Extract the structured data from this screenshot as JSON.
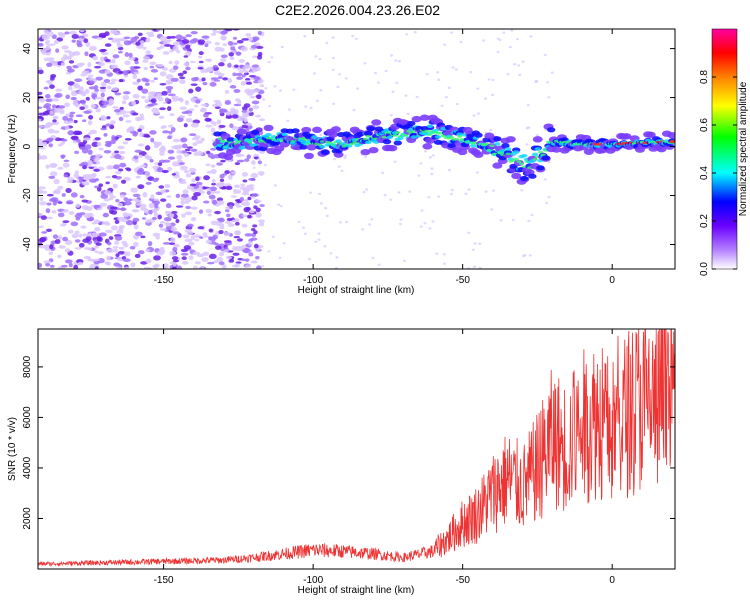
{
  "title": "C2E2.2026.004.23.26.E02",
  "chart_data": [
    {
      "type": "heatmap",
      "title": "C2E2.2026.004.23.26.E02",
      "xlabel": "Height of straight line (km)",
      "ylabel": "Frequency (Hz)",
      "xlim": [
        -192,
        21
      ],
      "ylim": [
        -50,
        48
      ],
      "xticks": [
        -150,
        -100,
        -50,
        0
      ],
      "yticks": [
        -40,
        -20,
        0,
        20,
        40
      ],
      "colorbar": {
        "label": "Normalized spectral amplitude",
        "range": [
          0,
          1
        ],
        "ticks": [
          0.0,
          0.2,
          0.4,
          0.6,
          0.8
        ],
        "colors": [
          "#ffffff",
          "#b37fff",
          "#6a00ff",
          "#0000ff",
          "#00ffff",
          "#00ff00",
          "#ffff00",
          "#ff8000",
          "#ff0000",
          "#ff00a0"
        ]
      },
      "ridge": [
        {
          "x": -130,
          "f": 1
        },
        {
          "x": -110,
          "f": 3
        },
        {
          "x": -90,
          "f": 1
        },
        {
          "x": -75,
          "f": 5
        },
        {
          "x": -60,
          "f": 6
        },
        {
          "x": -45,
          "f": 2
        },
        {
          "x": -35,
          "f": -4
        },
        {
          "x": -28,
          "f": -8
        },
        {
          "x": -20,
          "f": 2
        },
        {
          "x": -10,
          "f": 1
        },
        {
          "x": 0,
          "f": 1
        },
        {
          "x": 20,
          "f": 2
        }
      ]
    },
    {
      "type": "line",
      "xlabel": "Height of straight line (km)",
      "ylabel": "SNR (10 * v/v)",
      "xlim": [
        -192,
        21
      ],
      "ylim": [
        0,
        9500
      ],
      "xticks": [
        -150,
        -100,
        -50,
        0
      ],
      "yticks": [
        2000,
        4000,
        6000,
        8000
      ],
      "color": "#ee3333",
      "series": [
        {
          "name": "SNR",
          "x": [
            -192,
            -170,
            -150,
            -130,
            -120,
            -110,
            -100,
            -90,
            -80,
            -70,
            -60,
            -55,
            -50,
            -45,
            -40,
            -35,
            -30,
            -25,
            -20,
            -15,
            -10,
            -5,
            0,
            5,
            10,
            15,
            21
          ],
          "y": [
            200,
            250,
            300,
            350,
            450,
            600,
            750,
            700,
            600,
            450,
            700,
            1200,
            1800,
            2200,
            3000,
            3600,
            3200,
            4000,
            5200,
            4800,
            5600,
            6000,
            5400,
            6200,
            6600,
            6400,
            7200
          ]
        }
      ]
    }
  ]
}
